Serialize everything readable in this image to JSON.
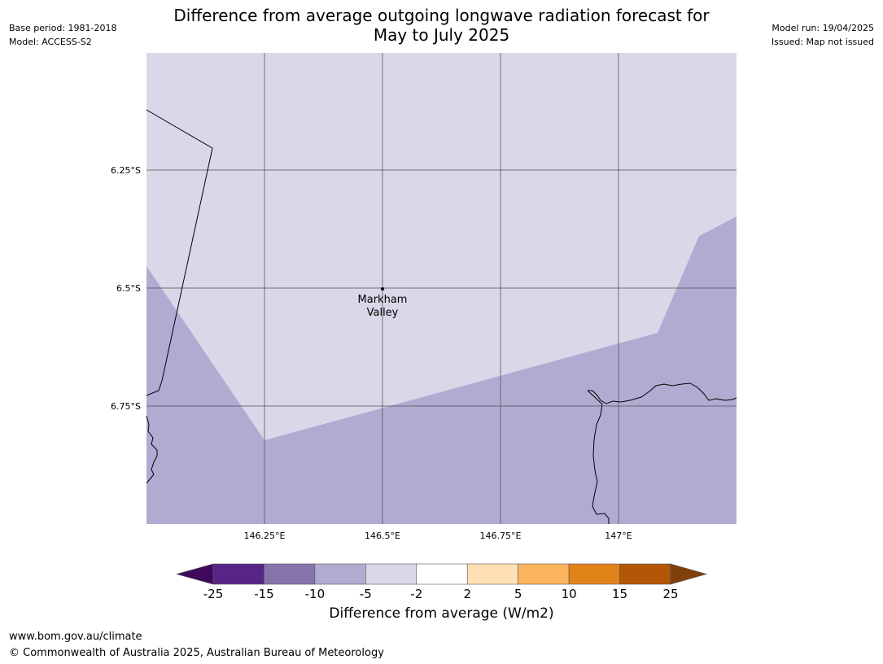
{
  "header": {
    "base_period": "Base period: 1981-2018",
    "model": "Model: ACCESS-S2",
    "model_run": "Model run: 19/04/2025",
    "issued": "Issued: Map not issued",
    "title_line1": "Difference from average outgoing longwave radiation forecast for",
    "title_line2": "May to July 2025"
  },
  "map": {
    "lon_ticks": [
      "146.25°E",
      "146.5°E",
      "146.75°E",
      "147°E"
    ],
    "lat_ticks": [
      "6.25°S",
      "6.5°S",
      "6.75°S"
    ],
    "place": {
      "name_line1": "Markham",
      "name_line2": "Valley",
      "lon": 146.5,
      "lat": -6.5
    },
    "regions": [
      {
        "range": "-5 to -2",
        "color": "#d8d8e9",
        "note": "northern part of map"
      },
      {
        "range": "-10 to -5",
        "color": "#b1abd2",
        "note": "southern part of map"
      }
    ]
  },
  "legend": {
    "title": "Difference from average (W/m2)",
    "bins": [
      {
        "color": "#3f0a5e"
      },
      {
        "color": "#582587"
      },
      {
        "color": "#8573ab"
      },
      {
        "color": "#b1abd2"
      },
      {
        "color": "#d8d8e9"
      },
      {
        "color": "#ffffff"
      },
      {
        "color": "#fee0b4"
      },
      {
        "color": "#fbb55d"
      },
      {
        "color": "#e2831a"
      },
      {
        "color": "#b35606"
      },
      {
        "color": "#80400b"
      }
    ],
    "tick_labels": [
      "-25",
      "-15",
      "-10",
      "-5",
      "-2",
      "2",
      "5",
      "10",
      "15",
      "25"
    ]
  },
  "footer": {
    "url": "www.bom.gov.au/climate",
    "copyright": "© Commonwealth of Australia 2025, Australian Bureau of Meteorology"
  }
}
